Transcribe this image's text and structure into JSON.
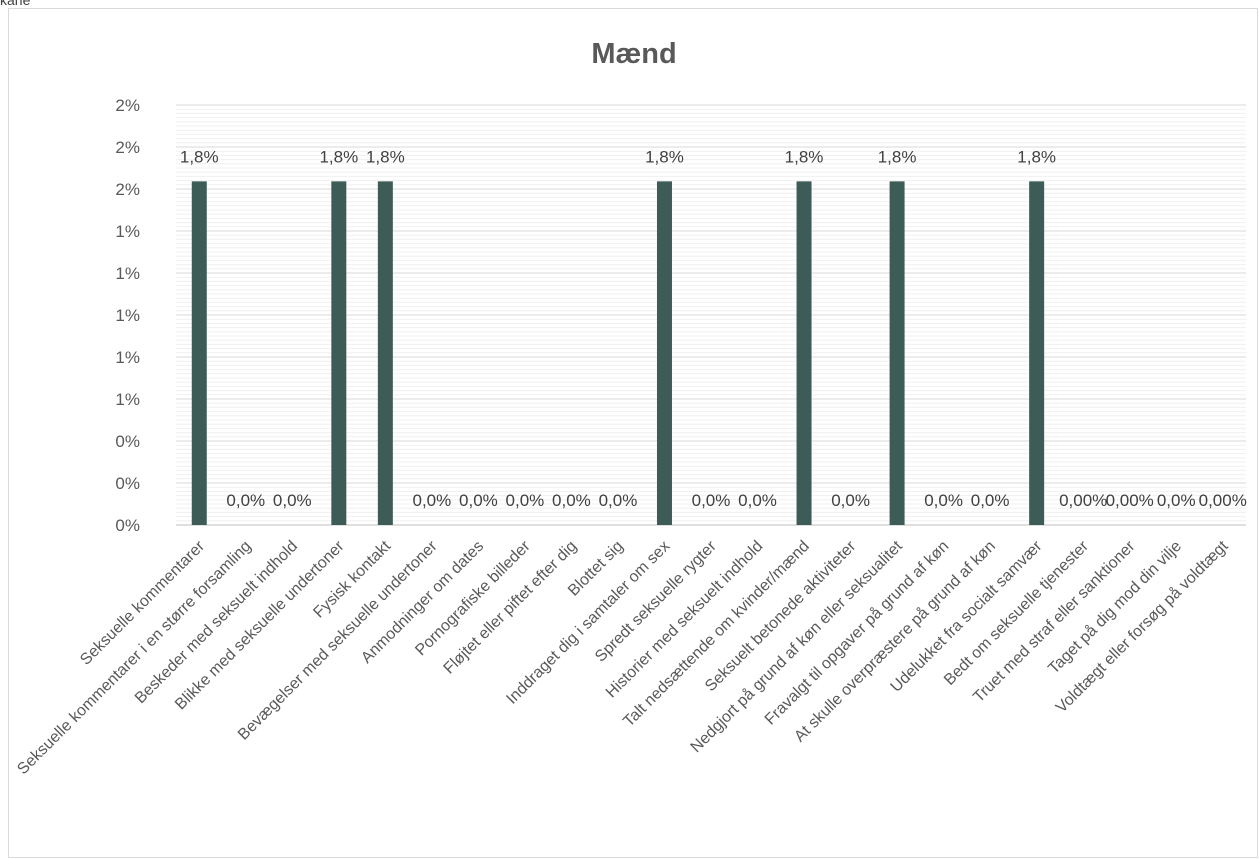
{
  "corner_text": "kane",
  "chart_data": {
    "type": "bar",
    "title": "Mænd",
    "xlabel": "",
    "ylabel": "",
    "ylim": [
      0,
      0.022
    ],
    "yticks": [
      "0%",
      "0%",
      "0%",
      "1%",
      "1%",
      "1%",
      "1%",
      "1%",
      "2%",
      "2%",
      "2%"
    ],
    "grid": true,
    "legend": "none",
    "bar_color": "#3e5c57",
    "categories": [
      "Seksuelle kommentarer",
      "Seksuelle kommentarer i en større forsamling",
      "Beskeder med seksuelt indhold",
      "Blikke med seksuelle undertoner",
      "Fysisk kontakt",
      "Bevægelser med seksuelle undertoner",
      "Anmodninger om dates",
      "Pornografiske billeder",
      "Fløjtet eller piftet efter dig",
      "Blottet sig",
      "Inddraget dig i samtaler om sex",
      "Spredt seksuelle rygter",
      "Historier med seksuelt indhold",
      "Talt nedsættende om kvinder/mænd",
      "Seksuelt betonede aktiviteter",
      "Nedgjort på grund af køn eller seksualitet",
      "Fravalgt til opgaver på grund af køn",
      "At skulle overpræstere på grund af køn",
      "Udelukket fra socialt samvær",
      "Bedt om seksuelle tjenester",
      "Truet med straf eller sanktioner",
      "Taget på dig mod din vilje",
      "Voldtægt eller forsøg på voldtægt"
    ],
    "values": [
      0.018,
      0,
      0,
      0.018,
      0.018,
      0,
      0,
      0,
      0,
      0,
      0.018,
      0,
      0,
      0.018,
      0,
      0.018,
      0,
      0,
      0.018,
      0,
      0,
      0,
      0
    ],
    "data_labels": [
      "1,8%",
      "0,0%",
      "0,0%",
      "1,8%",
      "1,8%",
      "0,0%",
      "0,0%",
      "0,0%",
      "0,0%",
      "0,0%",
      "1,8%",
      "0,0%",
      "0,0%",
      "1,8%",
      "0,0%",
      "1,8%",
      "0,0%",
      "0,0%",
      "1,8%",
      "0,00%",
      "0,00%",
      "0,0%",
      "0,00%"
    ]
  }
}
